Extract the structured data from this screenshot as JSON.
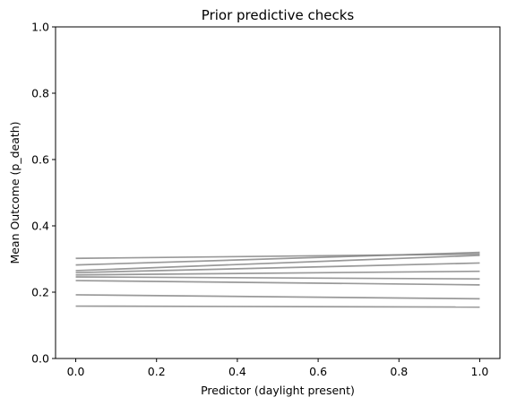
{
  "chart_data": {
    "type": "line",
    "title": "Prior predictive checks",
    "xlabel": "Predictor (daylight present)",
    "ylabel": "Mean Outcome (p_death)",
    "xlim": [
      -0.05,
      1.05
    ],
    "ylim": [
      0.0,
      1.0
    ],
    "xticks": [
      0.0,
      0.2,
      0.4,
      0.6,
      0.8,
      1.0
    ],
    "yticks": [
      0.0,
      0.2,
      0.4,
      0.6,
      0.8,
      1.0
    ],
    "xtick_labels": [
      "0.0",
      "0.2",
      "0.4",
      "0.6",
      "0.8",
      "1.0"
    ],
    "ytick_labels": [
      "0.0",
      "0.2",
      "0.4",
      "0.6",
      "0.8",
      "1.0"
    ],
    "grid": false,
    "line_color": "#808080",
    "x": [
      0.0,
      1.0
    ],
    "series": [
      {
        "values": [
          0.302,
          0.315
        ]
      },
      {
        "values": [
          0.282,
          0.32
        ]
      },
      {
        "values": [
          0.265,
          0.311
        ]
      },
      {
        "values": [
          0.259,
          0.288
        ]
      },
      {
        "values": [
          0.252,
          0.263
        ]
      },
      {
        "values": [
          0.246,
          0.24
        ]
      },
      {
        "values": [
          0.235,
          0.222
        ]
      },
      {
        "values": [
          0.192,
          0.18
        ]
      },
      {
        "values": [
          0.158,
          0.155
        ]
      }
    ]
  }
}
